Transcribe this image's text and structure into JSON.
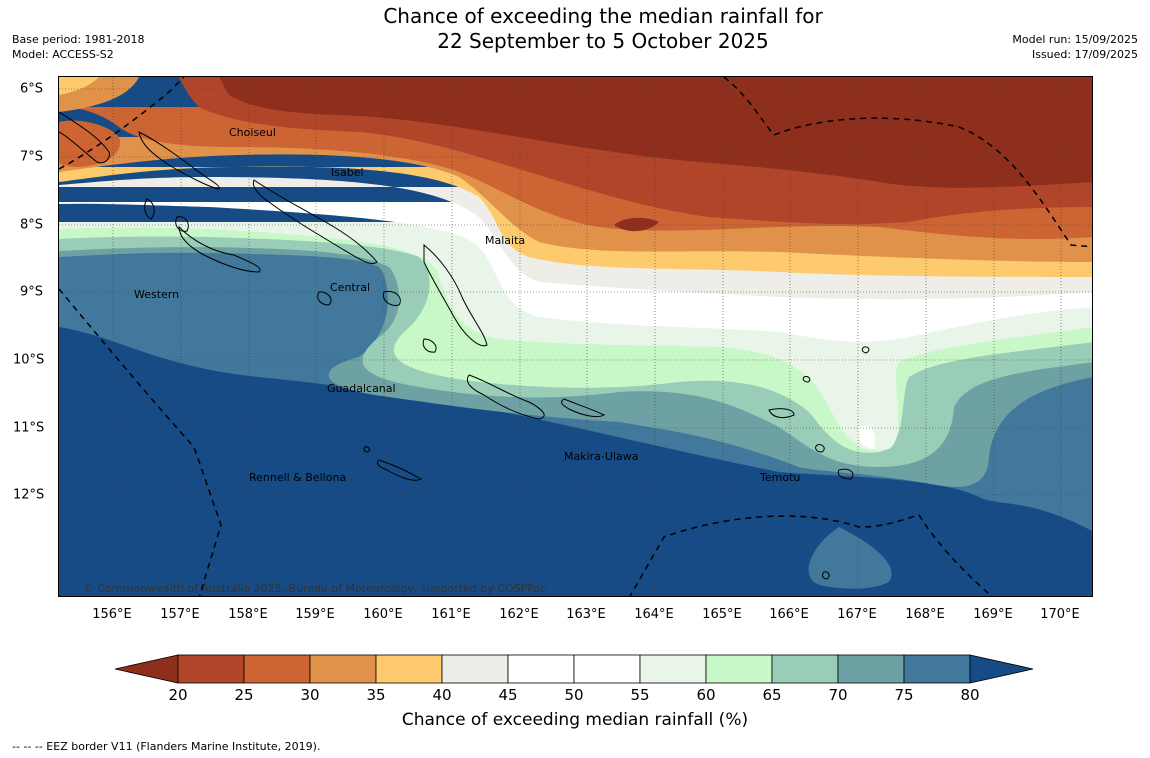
{
  "title": {
    "line1": "Chance of exceeding the median rainfall for",
    "line2": "22 September to 5 October 2025"
  },
  "meta_left": {
    "base_period": "Base period: 1981-2018",
    "model": "Model: ACCESS-S2"
  },
  "meta_right": {
    "model_run": "Model run: 15/09/2025",
    "issued": "Issued: 17/09/2025"
  },
  "map": {
    "lat_labels": [
      "6°S",
      "7°S",
      "8°S",
      "9°S",
      "10°S",
      "11°S",
      "12°S"
    ],
    "lon_labels": [
      "156°E",
      "157°E",
      "158°E",
      "159°E",
      "160°E",
      "161°E",
      "162°E",
      "163°E",
      "164°E",
      "165°E",
      "166°E",
      "167°E",
      "168°E",
      "169°E",
      "170°E"
    ],
    "places": {
      "choiseul": "Choiseul",
      "isabel": "Isabel",
      "malaita": "Malaita",
      "central": "Central",
      "western": "Western",
      "guadalcanal": "Guadalcanal",
      "makira": "Makira-Ulawa",
      "temotu": "Temotu",
      "rennell": "Rennell & Bellona"
    },
    "copyright": "© Commonwealth of Australia 2025, Bureau of Meteorology, supported by COSPPac"
  },
  "colorbar": {
    "title": "Chance of exceeding median rainfall (%)",
    "ticks": [
      "20",
      "25",
      "30",
      "35",
      "40",
      "45",
      "50",
      "55",
      "60",
      "65",
      "70",
      "75",
      "80"
    ],
    "colors": {
      "below20": "#8e2f1d",
      "b20_25": "#b0452a",
      "b25_30": "#cc6433",
      "b30_35": "#e0924a",
      "b35_40": "#fdcb6e",
      "b40_45": "#efede7",
      "b45_50": "#ffffff",
      "b50_55": "#ffffff",
      "b55_60": "#e9f5e8",
      "b60_65": "#c8f8c8",
      "b65_70": "#99cdb8",
      "b70_75": "#6ea1a4",
      "b75_80": "#42789b",
      "above80": "#164b86"
    }
  },
  "footnote": "--  --  -- EEZ border V11 (Flanders Marine Institute, 2019)."
}
